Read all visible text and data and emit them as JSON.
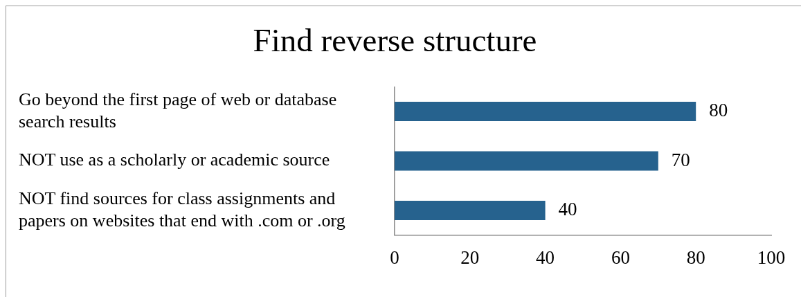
{
  "chart_data": {
    "type": "bar",
    "orientation": "horizontal",
    "title": "Find reverse structure",
    "categories": [
      "Go beyond the first page of web or database search results",
      "NOT use as a scholarly or academic source",
      "NOT find sources for class assignments and papers on websites that end with .com or .org"
    ],
    "values": [
      80,
      70,
      40
    ],
    "color": "#26628e",
    "xlim": [
      0,
      100
    ],
    "xticks": [
      0,
      20,
      40,
      60,
      80,
      100
    ],
    "grid": false,
    "legend": false,
    "data_labels": true
  }
}
